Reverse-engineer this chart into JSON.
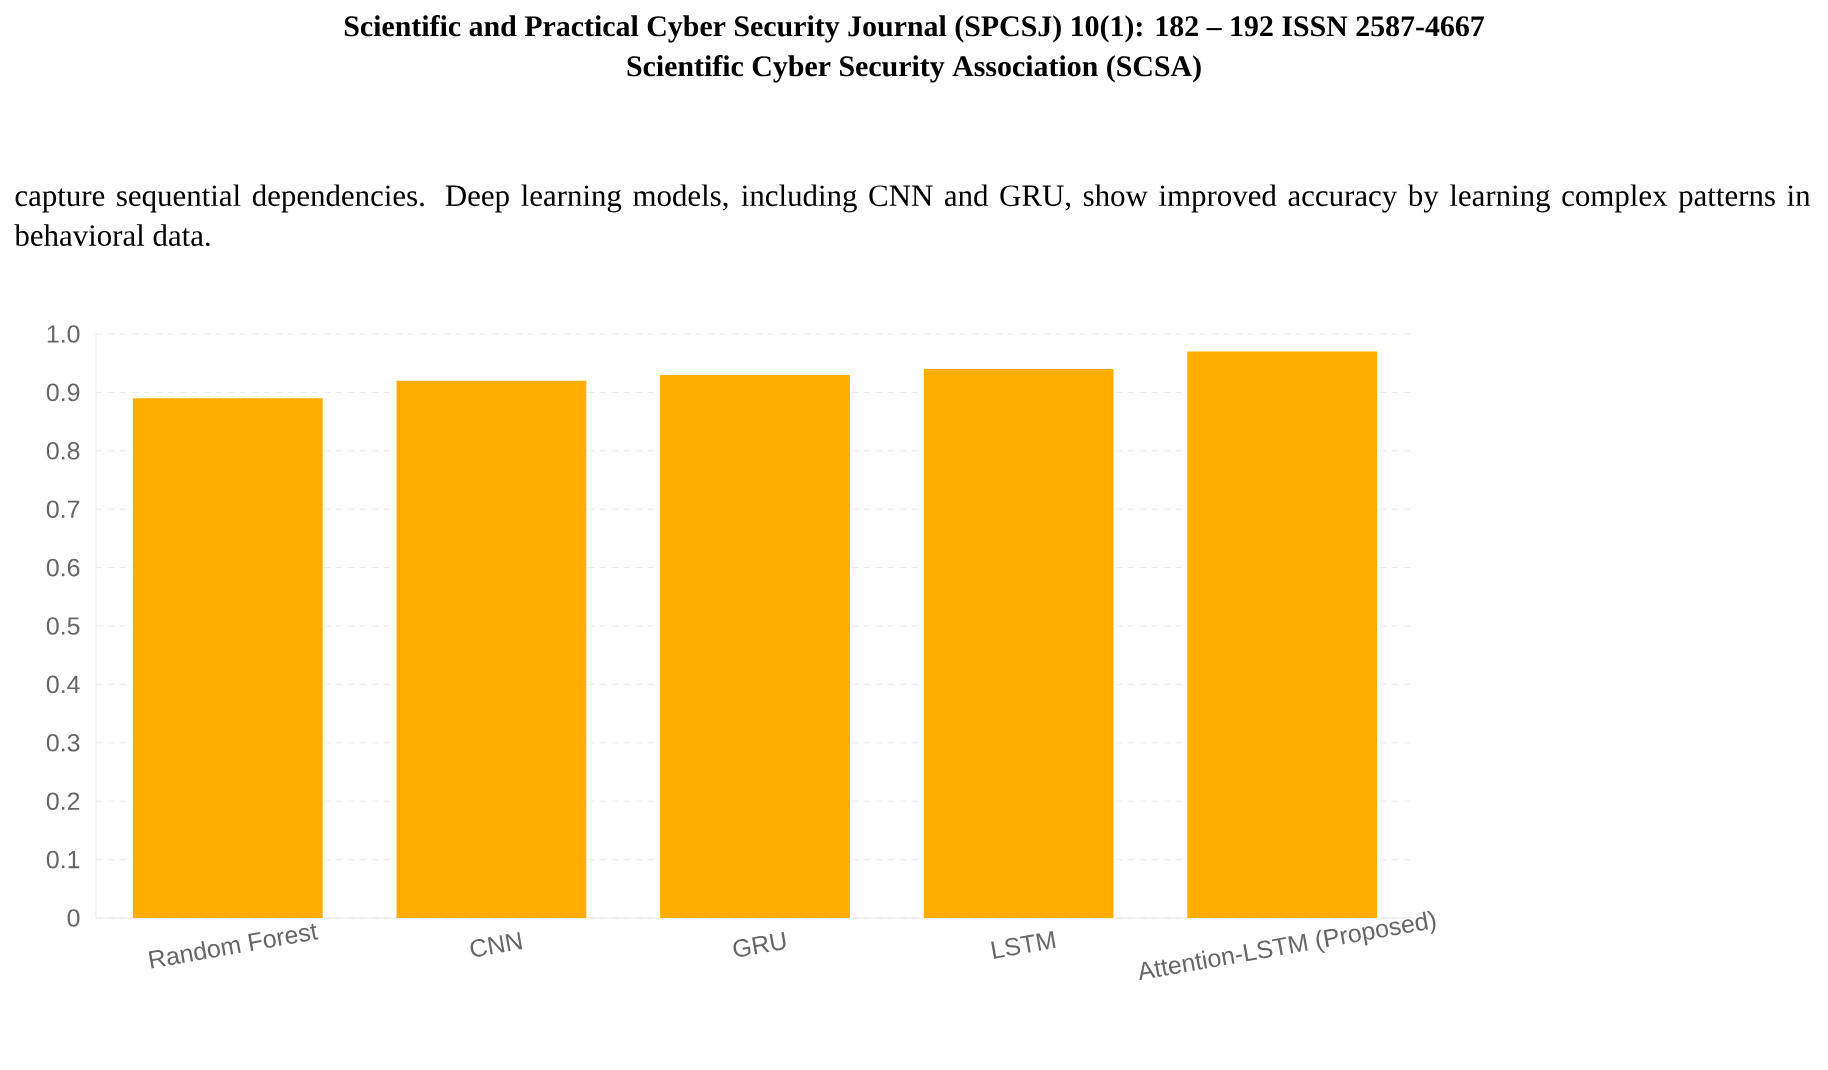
{
  "chart_data": {
    "type": "bar",
    "title": "Scientific and Practical Cyber Security Journal (SPCSJ) 10(1): 182 – 192 ISSN 2587-4667",
    "subtitle": "Scientific Cyber Security Association (SCSA)",
    "annotations": [
      "capture sequential dependencies. Deep learning models, including CNN and GRU, show improved accuracy by learning complex patterns in behavioral data."
    ],
    "categories": [
      "Random Forest",
      "CNN",
      "GRU",
      "LSTM",
      "Attention-LSTM (Proposed)"
    ],
    "values": [
      0.89,
      0.92,
      0.93,
      0.94,
      0.97
    ],
    "color": "#ffae00",
    "ylim": [
      0,
      1
    ],
    "yticks": [
      0,
      0.1,
      0.2,
      0.3,
      0.4,
      0.5,
      0.6,
      0.7,
      0.8,
      0.9,
      {
        "value": 1,
        "label": "1.0"
      }
    ],
    "grid": "y"
  }
}
